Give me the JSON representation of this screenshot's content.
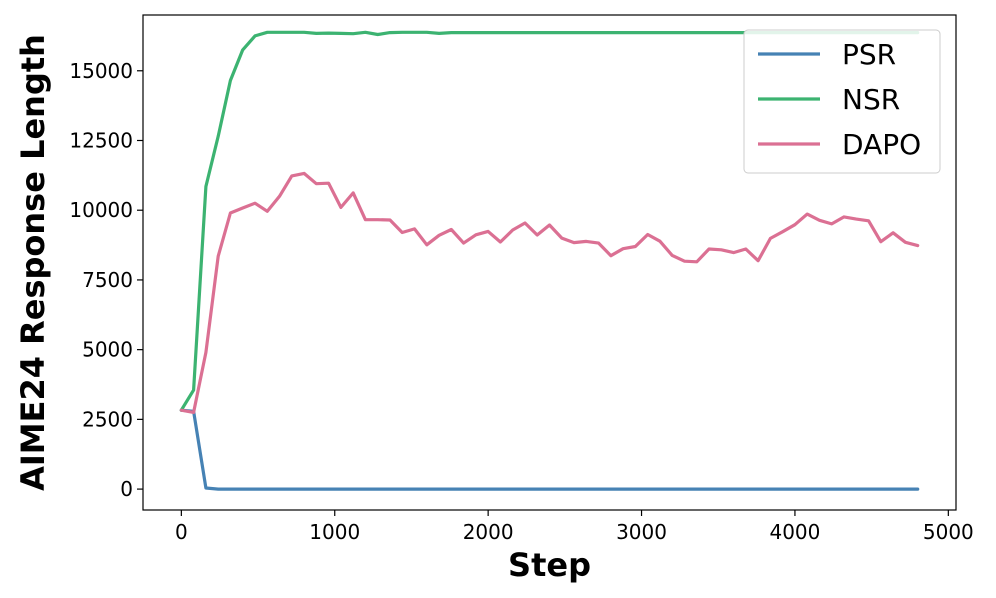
{
  "chart_data": {
    "type": "line",
    "title": "",
    "xlabel": "Step",
    "ylabel": "AIME24 Response Length",
    "xlim": [
      -250,
      5050
    ],
    "ylim": [
      -750,
      17000
    ],
    "xticks": [
      0,
      1000,
      2000,
      3000,
      4000,
      5000
    ],
    "yticks": [
      0,
      2500,
      5000,
      7500,
      10000,
      12500,
      15000
    ],
    "grid": false,
    "legend_position": "top-right",
    "series": [
      {
        "name": "PSR",
        "color": "#4682B4",
        "x": [
          0,
          80,
          160,
          240,
          320,
          400,
          480,
          560,
          640,
          720,
          800,
          880,
          960,
          1040,
          1120,
          1200,
          1280,
          1360,
          1440,
          1520,
          1600,
          1680,
          1760,
          1840,
          1920,
          2000,
          2080,
          2160,
          2240,
          2320,
          2400,
          2480,
          2560,
          2640,
          2720,
          2800,
          2880,
          2960,
          3040,
          3120,
          3200,
          3280,
          3360,
          3440,
          3520,
          3600,
          3680,
          3760,
          3840,
          3920,
          4000,
          4080,
          4160,
          4240,
          4320,
          4400,
          4480,
          4560,
          4640,
          4720,
          4800
        ],
        "y": [
          2830,
          2790,
          40,
          0,
          0,
          0,
          0,
          0,
          0,
          0,
          0,
          0,
          0,
          0,
          0,
          0,
          0,
          0,
          0,
          0,
          0,
          0,
          0,
          0,
          0,
          0,
          0,
          0,
          0,
          0,
          0,
          0,
          0,
          0,
          0,
          0,
          0,
          0,
          0,
          0,
          0,
          0,
          0,
          0,
          0,
          0,
          0,
          0,
          0,
          0,
          0,
          0,
          0,
          0,
          0,
          0,
          0,
          0,
          0,
          0,
          0
        ]
      },
      {
        "name": "NSR",
        "color": "#3CB371",
        "x": [
          0,
          80,
          160,
          240,
          320,
          400,
          480,
          560,
          640,
          720,
          800,
          880,
          960,
          1040,
          1120,
          1200,
          1280,
          1360,
          1440,
          1520,
          1600,
          1680,
          1760,
          1840,
          1920,
          2000,
          2080,
          2160,
          2240,
          2320,
          2400,
          2480,
          2560,
          2640,
          2720,
          2800,
          2880,
          2960,
          3040,
          3120,
          3200,
          3280,
          3360,
          3440,
          3520,
          3600,
          3680,
          3760,
          3840,
          3920,
          4000,
          4080,
          4160,
          4240,
          4320,
          4400,
          4480,
          4560,
          4640,
          4720,
          4800
        ],
        "y": [
          2830,
          3550,
          10850,
          12650,
          14650,
          15750,
          16250,
          16380,
          16380,
          16380,
          16380,
          16340,
          16350,
          16340,
          16330,
          16380,
          16300,
          16370,
          16380,
          16380,
          16380,
          16340,
          16370,
          16370,
          16370,
          16370,
          16370,
          16370,
          16370,
          16370,
          16370,
          16370,
          16370,
          16370,
          16370,
          16370,
          16370,
          16370,
          16370,
          16370,
          16370,
          16370,
          16370,
          16370,
          16370,
          16370,
          16370,
          16370,
          16370,
          16370,
          16370,
          16370,
          16370,
          16370,
          16370,
          16370,
          16370,
          16370,
          16370,
          16370,
          16370
        ]
      },
      {
        "name": "DAPO",
        "color": "#DB7093",
        "x": [
          0,
          80,
          160,
          240,
          320,
          400,
          480,
          560,
          640,
          720,
          800,
          880,
          960,
          1040,
          1120,
          1200,
          1280,
          1360,
          1440,
          1520,
          1600,
          1680,
          1760,
          1840,
          1920,
          2000,
          2080,
          2160,
          2240,
          2320,
          2400,
          2480,
          2560,
          2640,
          2720,
          2800,
          2880,
          2960,
          3040,
          3120,
          3200,
          3280,
          3360,
          3440,
          3520,
          3600,
          3680,
          3760,
          3840,
          3920,
          4000,
          4080,
          4160,
          4240,
          4320,
          4400,
          4480,
          4560,
          4640,
          4720,
          4800
        ],
        "y": [
          2830,
          2750,
          4900,
          8350,
          9900,
          10080,
          10250,
          9960,
          10500,
          11230,
          11320,
          10950,
          10970,
          10100,
          10620,
          9660,
          9660,
          9650,
          9200,
          9330,
          8760,
          9100,
          9310,
          8820,
          9120,
          9240,
          8860,
          9290,
          9540,
          9110,
          9470,
          9000,
          8840,
          8880,
          8820,
          8370,
          8620,
          8700,
          9130,
          8890,
          8380,
          8170,
          8150,
          8610,
          8580,
          8480,
          8610,
          8190,
          8990,
          9230,
          9480,
          9860,
          9640,
          9510,
          9760,
          9680,
          9620,
          8870,
          9190,
          8850,
          8730
        ]
      }
    ]
  }
}
